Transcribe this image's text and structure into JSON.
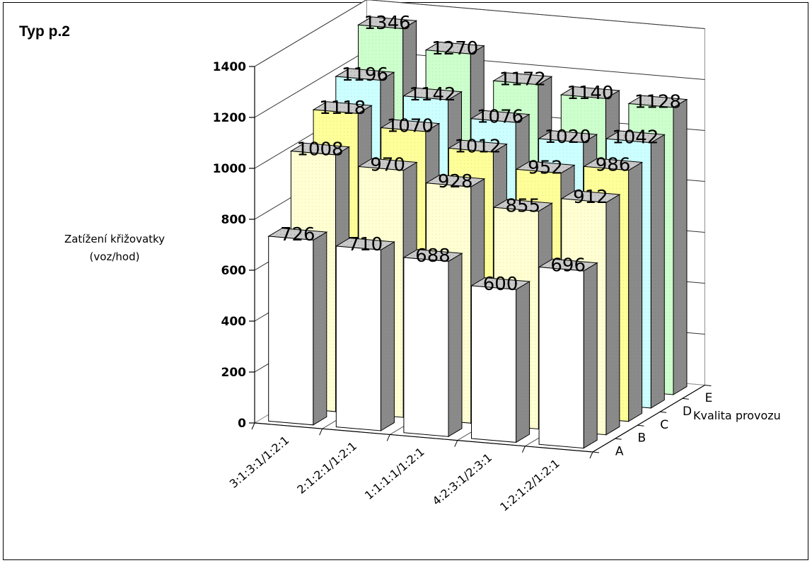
{
  "chart_data": {
    "type": "bar",
    "title": "Typ p.2",
    "ylabel": "Zatížení křižovatky (voz/hod)",
    "ylabel_lines": [
      "Zatížení křižovatky",
      "(voz/hod)"
    ],
    "zlabel": "Kvalita provozu",
    "categories": [
      "3:1:3:1/1:2:1",
      "2:1:2:1/1:2:1",
      "1:1:1:1/1:2:1",
      "4:2:3:1/2:3:1",
      "1:2:1:2/1:2:1"
    ],
    "yticks": [
      "0",
      "200",
      "400",
      "600",
      "800",
      "1000",
      "1200",
      "1400"
    ],
    "ylim": [
      0,
      1400
    ],
    "series": [
      {
        "name": "A",
        "values": [
          726,
          710,
          688,
          600,
          696
        ],
        "color": "#ffffff"
      },
      {
        "name": "B",
        "values": [
          1008,
          970,
          928,
          855,
          912
        ],
        "color": "#ffffd2"
      },
      {
        "name": "C",
        "values": [
          1118,
          1070,
          1012,
          952,
          986
        ],
        "color": "#ffff99"
      },
      {
        "name": "D",
        "values": [
          1196,
          1142,
          1076,
          1020,
          1042
        ],
        "color": "#ccffff"
      },
      {
        "name": "E",
        "values": [
          1346,
          1270,
          1172,
          1140,
          1128
        ],
        "color": "#ccffcc"
      }
    ],
    "grid": true
  }
}
